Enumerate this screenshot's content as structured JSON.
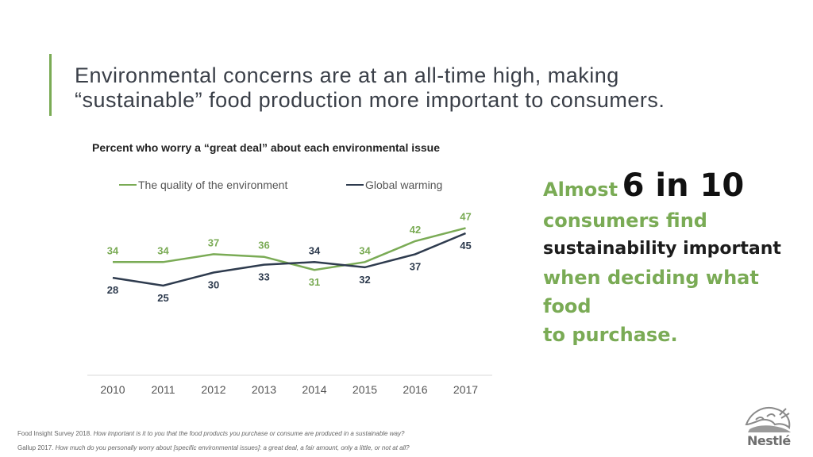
{
  "slide": {
    "title_line1": "Environmental concerns are at an all-time high, making",
    "title_line2": "“sustainable” food production more important to consumers."
  },
  "chart_data": {
    "type": "line",
    "title": "Percent who worry a “great deal” about each environmental issue",
    "xlabel": "",
    "ylabel": "",
    "categories": [
      "2010",
      "2011",
      "2012",
      "2013",
      "2014",
      "2015",
      "2016",
      "2017"
    ],
    "series": [
      {
        "name": "The quality of the environment",
        "color": "#7aab55",
        "values": [
          34,
          34,
          37,
          36,
          31,
          34,
          42,
          47
        ]
      },
      {
        "name": "Global warming",
        "color": "#2e3b4e",
        "values": [
          28,
          25,
          30,
          33,
          34,
          32,
          37,
          45
        ]
      }
    ],
    "ylim": [
      0,
      50
    ],
    "grid": false,
    "legend": "top",
    "data_labels": true
  },
  "callout": {
    "prefix": "Almost",
    "stat": "6 in 10",
    "line1": "consumers find",
    "line2": "sustainability important",
    "line3": "when deciding what food",
    "line4": "to purchase."
  },
  "footnotes": [
    {
      "source": "Food Insight Survey 2018.",
      "question": "How important is it to you that the food products you purchase or consume are produced in a sustainable way?"
    },
    {
      "source": "Gallup 2017.",
      "question": "How much do you personally worry about [specific environmental issues]: a great deal, a fair amount, only a little, or not at all?"
    }
  ],
  "logo": {
    "icon": "nest-birds-icon",
    "wordmark": "Nestlé"
  }
}
